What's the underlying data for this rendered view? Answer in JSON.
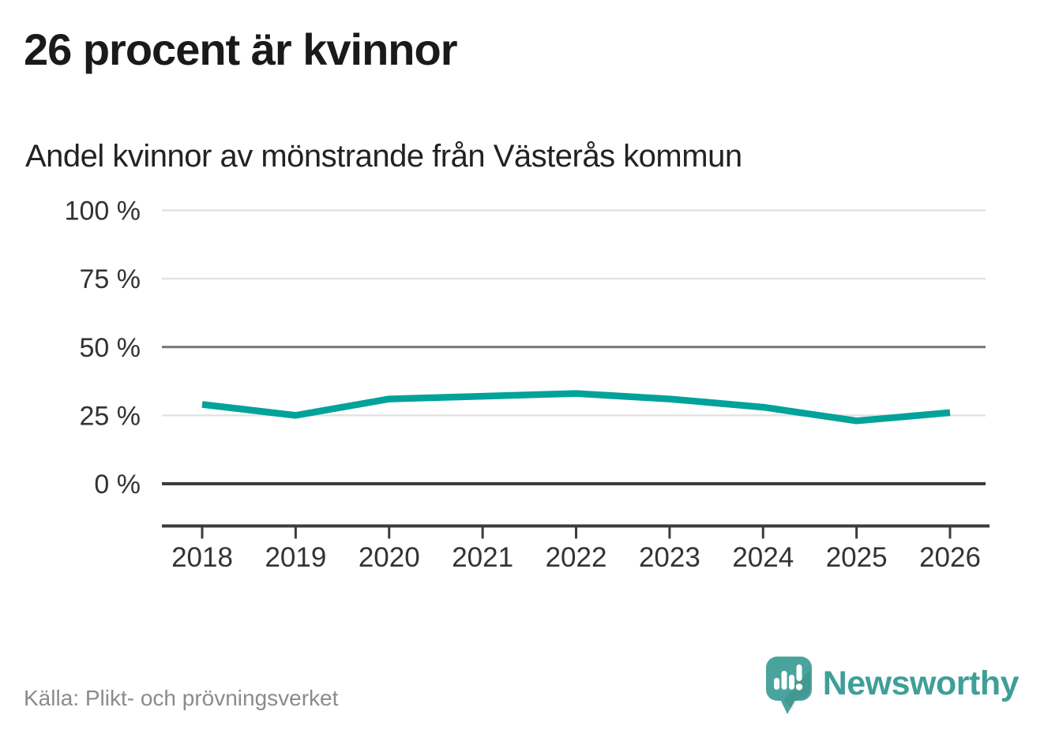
{
  "page": {
    "title": "26 procent är kvinnor",
    "subtitle": "Andel kvinnor av mönstrande från Västerås kommun",
    "source": "Källa: Plikt- och prövningsverket",
    "brand_name": "Newsworthy"
  },
  "colors": {
    "line": "#00a29a",
    "brand_teal": "#3f9f98",
    "bubble_teal": "#4aa49e",
    "grid_light": "#e2e2e2",
    "grid_mid": "#74747c",
    "zero_line": "#3c3c3c",
    "axis": "#3c3c3c",
    "axis_text": "#333333"
  },
  "chart_data": {
    "type": "line",
    "title": "26 procent är kvinnor",
    "subtitle": "Andel kvinnor av mönstrande från Västerås kommun",
    "categories": [
      "2018",
      "2019",
      "2020",
      "2021",
      "2022",
      "2023",
      "2024",
      "2025",
      "2026"
    ],
    "series": [
      {
        "name": "Andel kvinnor av mönstrande",
        "values": [
          29,
          25,
          31,
          32,
          33,
          31,
          28,
          23,
          26
        ],
        "color": "#00a29a"
      }
    ],
    "unit": "%",
    "xlabel": "",
    "ylabel": "",
    "ylim": [
      0,
      100
    ],
    "yticks": [
      0,
      25,
      50,
      75,
      100
    ],
    "ytick_labels": [
      "0 %",
      "25 %",
      "50 %",
      "75 %",
      "100 %"
    ],
    "grid": true,
    "legend": false,
    "source": "Källa: Plikt- och prövningsverket"
  }
}
